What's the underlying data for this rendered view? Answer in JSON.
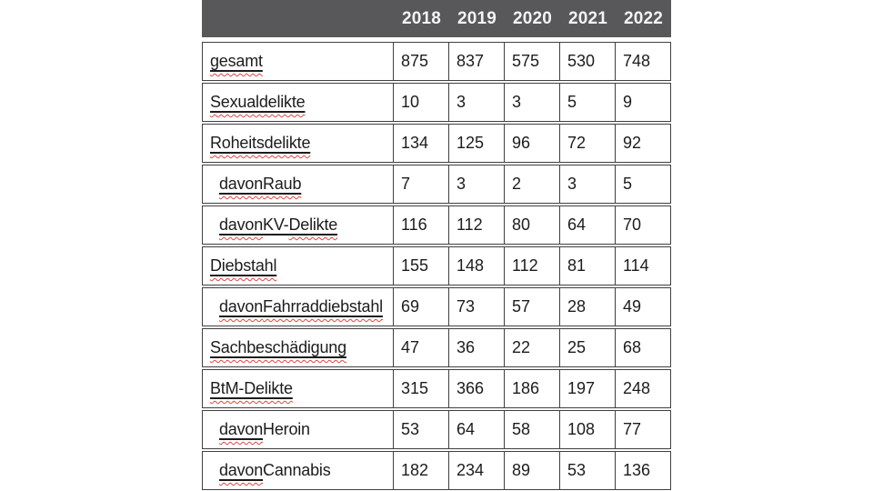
{
  "colors": {
    "background": "#ffffff",
    "header_bg": "#58585a",
    "header_text": "#f4f4f4",
    "border": "#404040",
    "text": "#1c1c1c",
    "underline": "#1c1c1c",
    "squiggle": "#e2453c"
  },
  "table": {
    "years": [
      "2018",
      "2019",
      "2020",
      "2021",
      "2022"
    ],
    "rows": [
      {
        "indent": false,
        "values": [
          "875",
          "837",
          "575",
          "530",
          "748"
        ],
        "label": [
          {
            "text": "gesamt",
            "underline": true,
            "squiggle": true
          }
        ]
      },
      {
        "indent": false,
        "values": [
          "10",
          "3",
          "3",
          "5",
          "9"
        ],
        "label": [
          {
            "text": "Sexualdelikte",
            "underline": true,
            "squiggle": true
          }
        ]
      },
      {
        "indent": false,
        "values": [
          "134",
          "125",
          "96",
          "72",
          "92"
        ],
        "label": [
          {
            "text": "Roheitsdelikte",
            "underline": true,
            "squiggle": true
          }
        ]
      },
      {
        "indent": true,
        "values": [
          "7",
          "3",
          "2",
          "3",
          "5"
        ],
        "label": [
          {
            "text": "davon",
            "underline": true,
            "squiggle": true
          },
          {
            "text": " ",
            "underline": true,
            "squiggle": false
          },
          {
            "text": "Raub",
            "underline": true,
            "squiggle": true
          }
        ]
      },
      {
        "indent": true,
        "values": [
          "116",
          "112",
          "80",
          "64",
          "70"
        ],
        "label": [
          {
            "text": "davon",
            "underline": true,
            "squiggle": true
          },
          {
            "text": " ",
            "underline": true,
            "squiggle": false
          },
          {
            "text": "KV-",
            "underline": true,
            "squiggle": false
          },
          {
            "text": "Delikte",
            "underline": true,
            "squiggle": true
          }
        ]
      },
      {
        "indent": false,
        "values": [
          "155",
          "148",
          "112",
          "81",
          "114"
        ],
        "label": [
          {
            "text": "Diebstahl",
            "underline": true,
            "squiggle": true
          }
        ]
      },
      {
        "indent": true,
        "values": [
          "69",
          "73",
          "57",
          "28",
          "49"
        ],
        "label": [
          {
            "text": "davon",
            "underline": true,
            "squiggle": true
          },
          {
            "text": " ",
            "underline": true,
            "squiggle": false
          },
          {
            "text": "Fahrraddiebstahl",
            "underline": true,
            "squiggle": true
          }
        ]
      },
      {
        "indent": false,
        "values": [
          "47",
          "36",
          "22",
          "25",
          "68"
        ],
        "label": [
          {
            "text": "Sachbeschädigung",
            "underline": true,
            "squiggle": true
          }
        ]
      },
      {
        "indent": false,
        "values": [
          "315",
          "366",
          "186",
          "197",
          "248"
        ],
        "label": [
          {
            "text": "BtM-Delikte",
            "underline": true,
            "squiggle": true
          }
        ]
      },
      {
        "indent": true,
        "values": [
          "53",
          "64",
          "58",
          "108",
          "77"
        ],
        "label": [
          {
            "text": "davon",
            "underline": true,
            "squiggle": true
          },
          {
            "text": " ",
            "underline": false,
            "squiggle": false
          },
          {
            "text": "Heroin",
            "underline": false,
            "squiggle": false
          }
        ]
      },
      {
        "indent": true,
        "values": [
          "182",
          "234",
          "89",
          "53",
          "136"
        ],
        "label": [
          {
            "text": "davon",
            "underline": true,
            "squiggle": true
          },
          {
            "text": " ",
            "underline": false,
            "squiggle": false
          },
          {
            "text": "Cannabis",
            "underline": false,
            "squiggle": false
          }
        ]
      }
    ]
  }
}
